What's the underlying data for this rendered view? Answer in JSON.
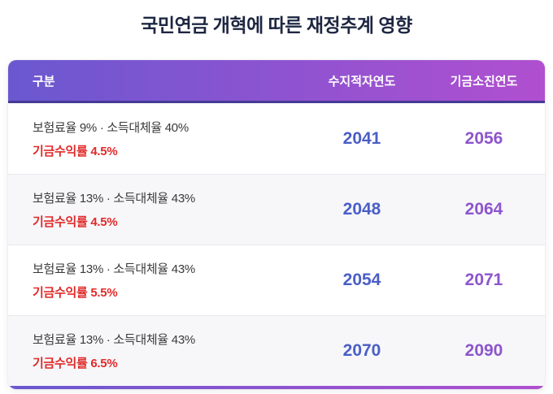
{
  "page": {
    "title": "국민연금 개혁에 따른 재정추계 영향"
  },
  "table": {
    "columns": [
      {
        "label": "구분"
      },
      {
        "label": "수지적자연도"
      },
      {
        "label": "기금소진연도"
      }
    ],
    "rows": [
      {
        "condition": "보험료율 9% · 소득대체율 40%",
        "return_rate": "기금수익률 4.5%",
        "deficit_year": "2041",
        "depletion_year": "2056"
      },
      {
        "condition": "보험료율 13% · 소득대체율 43%",
        "return_rate": "기금수익률 4.5%",
        "deficit_year": "2048",
        "depletion_year": "2064"
      },
      {
        "condition": "보험료율 13% · 소득대체율 43%",
        "return_rate": "기금수익률 5.5%",
        "deficit_year": "2054",
        "depletion_year": "2071"
      },
      {
        "condition": "보험료율 13% · 소득대체율 43%",
        "return_rate": "기금수익률 6.5%",
        "deficit_year": "2070",
        "depletion_year": "2090"
      }
    ]
  },
  "colors": {
    "header_gradient_start": "#6a58d0",
    "header_gradient_end": "#b04fd0",
    "header_underline": "#453a94",
    "deficit_year": "#4a5ec6",
    "depletion_year": "#8d55cc",
    "return_rate": "#e02a2a",
    "title": "#1e2742",
    "row_alt_bg": "#f7f7fa"
  },
  "chart_data": {
    "type": "table",
    "title": "국민연금 개혁에 따른 재정추계 영향",
    "columns": [
      "구분",
      "수지적자연도",
      "기금소진연도"
    ],
    "rows": [
      [
        "보험료율 9% · 소득대체율 40% / 기금수익률 4.5%",
        2041,
        2056
      ],
      [
        "보험료율 13% · 소득대체율 43% / 기금수익률 4.5%",
        2048,
        2064
      ],
      [
        "보험료율 13% · 소득대체율 43% / 기금수익률 5.5%",
        2054,
        2071
      ],
      [
        "보험료율 13% · 소득대체율 43% / 기금수익률 6.5%",
        2070,
        2090
      ]
    ],
    "notes": {
      "column_1_color": "#4a5ec6",
      "column_2_color": "#8d55cc",
      "return_rate_text_color": "#e02a2a",
      "header_style": "purple-to-magenta gradient"
    }
  }
}
